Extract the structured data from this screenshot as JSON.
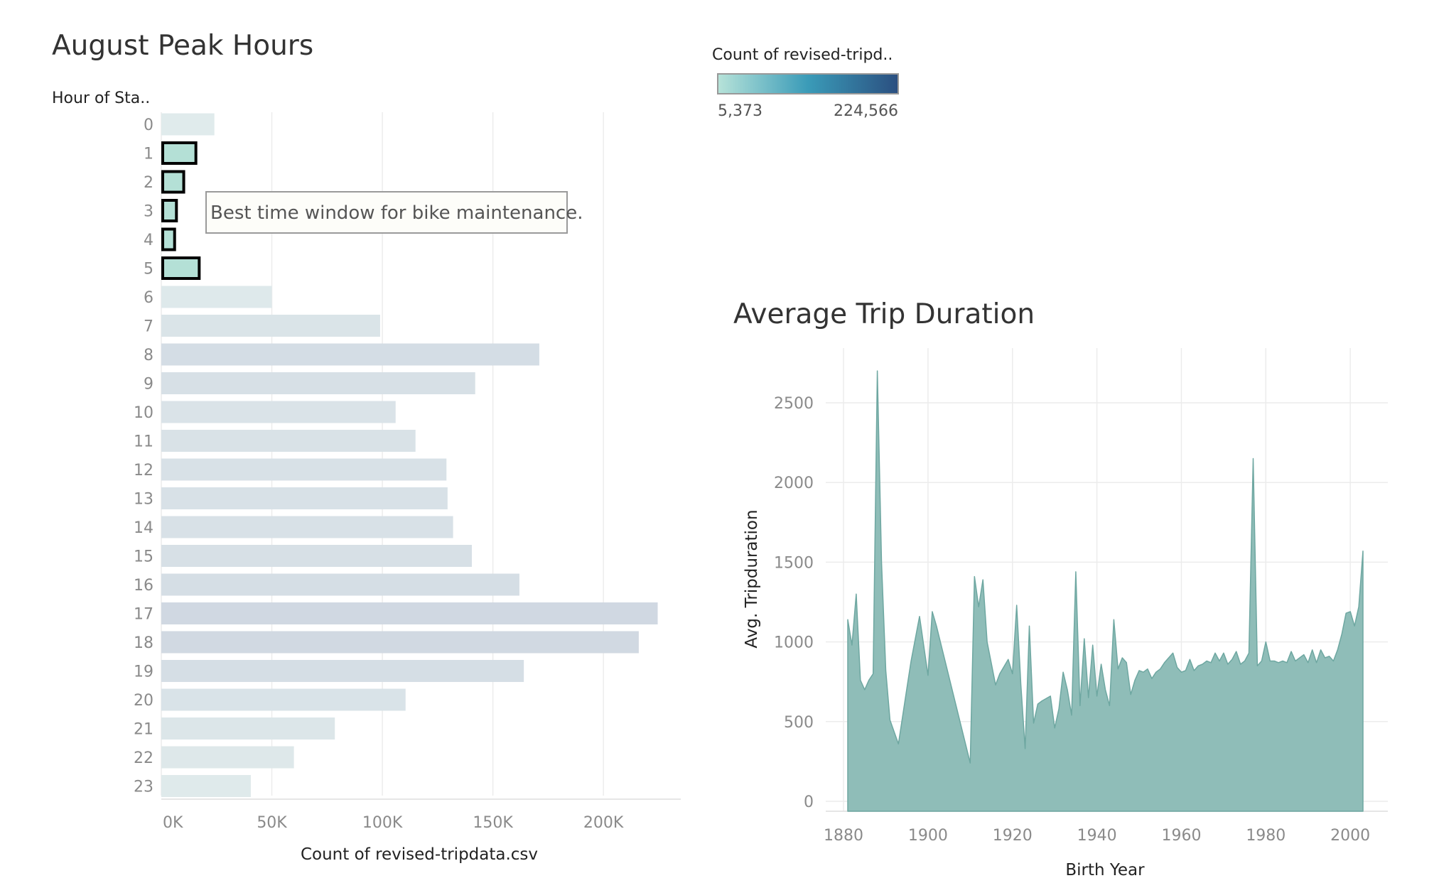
{
  "colors": {
    "legend_low": "#b7e3d9",
    "legend_mid": "#3a9bb8",
    "legend_high": "#2b4f80",
    "area_fill": "#8fbdb8",
    "area_stroke": "#6ea7a1",
    "highlight_fill": "#b4e0d6",
    "highlight_stroke": "#000000"
  },
  "legend": {
    "title": "Count of revised-tripd..",
    "min_label": "5,373",
    "max_label": "224,566"
  },
  "annotation": {
    "text": "Best time window for bike maintenance."
  },
  "chart_data": [
    {
      "type": "bar",
      "orientation": "horizontal",
      "title": "August Peak Hours",
      "ylabel": "Hour of Sta..",
      "xlabel": "Count of revised-tripdata.csv",
      "xlim": [
        0,
        235000
      ],
      "x_ticks": [
        "0K",
        "50K",
        "100K",
        "150K",
        "200K"
      ],
      "categories": [
        "0",
        "1",
        "2",
        "3",
        "4",
        "5",
        "6",
        "7",
        "8",
        "9",
        "10",
        "11",
        "12",
        "13",
        "14",
        "15",
        "16",
        "17",
        "18",
        "19",
        "20",
        "21",
        "22",
        "23"
      ],
      "values": [
        24000,
        15000,
        9500,
        6200,
        5373,
        16500,
        50000,
        99000,
        171000,
        142000,
        106000,
        115000,
        129000,
        129500,
        132000,
        140500,
        162000,
        224566,
        216000,
        164000,
        110500,
        78500,
        60000,
        40500
      ],
      "highlighted_categories": [
        "1",
        "2",
        "3",
        "4",
        "5"
      ],
      "color_scale": "count"
    },
    {
      "type": "area",
      "title": "Average Trip Duration",
      "xlabel": "Birth Year",
      "ylabel": "Avg. Tripduration",
      "xlim": [
        1877,
        2009
      ],
      "ylim": [
        0,
        2700
      ],
      "x_ticks": [
        "1880",
        "1900",
        "1920",
        "1940",
        "1960",
        "1980",
        "2000"
      ],
      "y_ticks": [
        "0",
        "500",
        "1000",
        "1500",
        "2000",
        "2500"
      ],
      "x": [
        1881,
        1882,
        1883,
        1884,
        1885,
        1886,
        1887,
        1888,
        1889,
        1890,
        1891,
        1893,
        1895,
        1896,
        1898,
        1900,
        1901,
        1902,
        1910,
        1911,
        1912,
        1913,
        1914,
        1916,
        1917,
        1919,
        1920,
        1921,
        1922,
        1923,
        1924,
        1925,
        1926,
        1927,
        1929,
        1930,
        1931,
        1932,
        1933,
        1934,
        1935,
        1936,
        1937,
        1938,
        1939,
        1940,
        1941,
        1942,
        1943,
        1944,
        1945,
        1946,
        1947,
        1948,
        1949,
        1950,
        1951,
        1952,
        1953,
        1954,
        1955,
        1956,
        1957,
        1958,
        1959,
        1960,
        1961,
        1962,
        1963,
        1964,
        1965,
        1966,
        1967,
        1968,
        1969,
        1970,
        1971,
        1972,
        1973,
        1974,
        1975,
        1976,
        1977,
        1978,
        1979,
        1980,
        1981,
        1982,
        1983,
        1984,
        1985,
        1986,
        1987,
        1988,
        1989,
        1990,
        1991,
        1992,
        1993,
        1994,
        1995,
        1996,
        1997,
        1998,
        1999,
        2000,
        2001,
        2002,
        2003
      ],
      "y": [
        1140,
        980,
        1300,
        760,
        700,
        760,
        800,
        2700,
        1500,
        820,
        510,
        360,
        710,
        880,
        1160,
        790,
        1190,
        1100,
        240,
        1410,
        1220,
        1390,
        1000,
        730,
        800,
        890,
        800,
        1230,
        730,
        330,
        1100,
        490,
        610,
        630,
        660,
        460,
        580,
        810,
        700,
        540,
        1440,
        600,
        1020,
        650,
        980,
        660,
        860,
        700,
        600,
        1140,
        830,
        900,
        870,
        670,
        760,
        820,
        810,
        830,
        770,
        810,
        830,
        870,
        900,
        930,
        840,
        810,
        820,
        890,
        820,
        850,
        860,
        880,
        870,
        930,
        880,
        930,
        860,
        890,
        940,
        860,
        880,
        930,
        2150,
        850,
        880,
        1000,
        880,
        880,
        870,
        880,
        870,
        940,
        880,
        900,
        920,
        870,
        950,
        870,
        950,
        900,
        910,
        880,
        950,
        1050,
        1180,
        1190,
        1100,
        1220,
        1570
      ]
    }
  ]
}
